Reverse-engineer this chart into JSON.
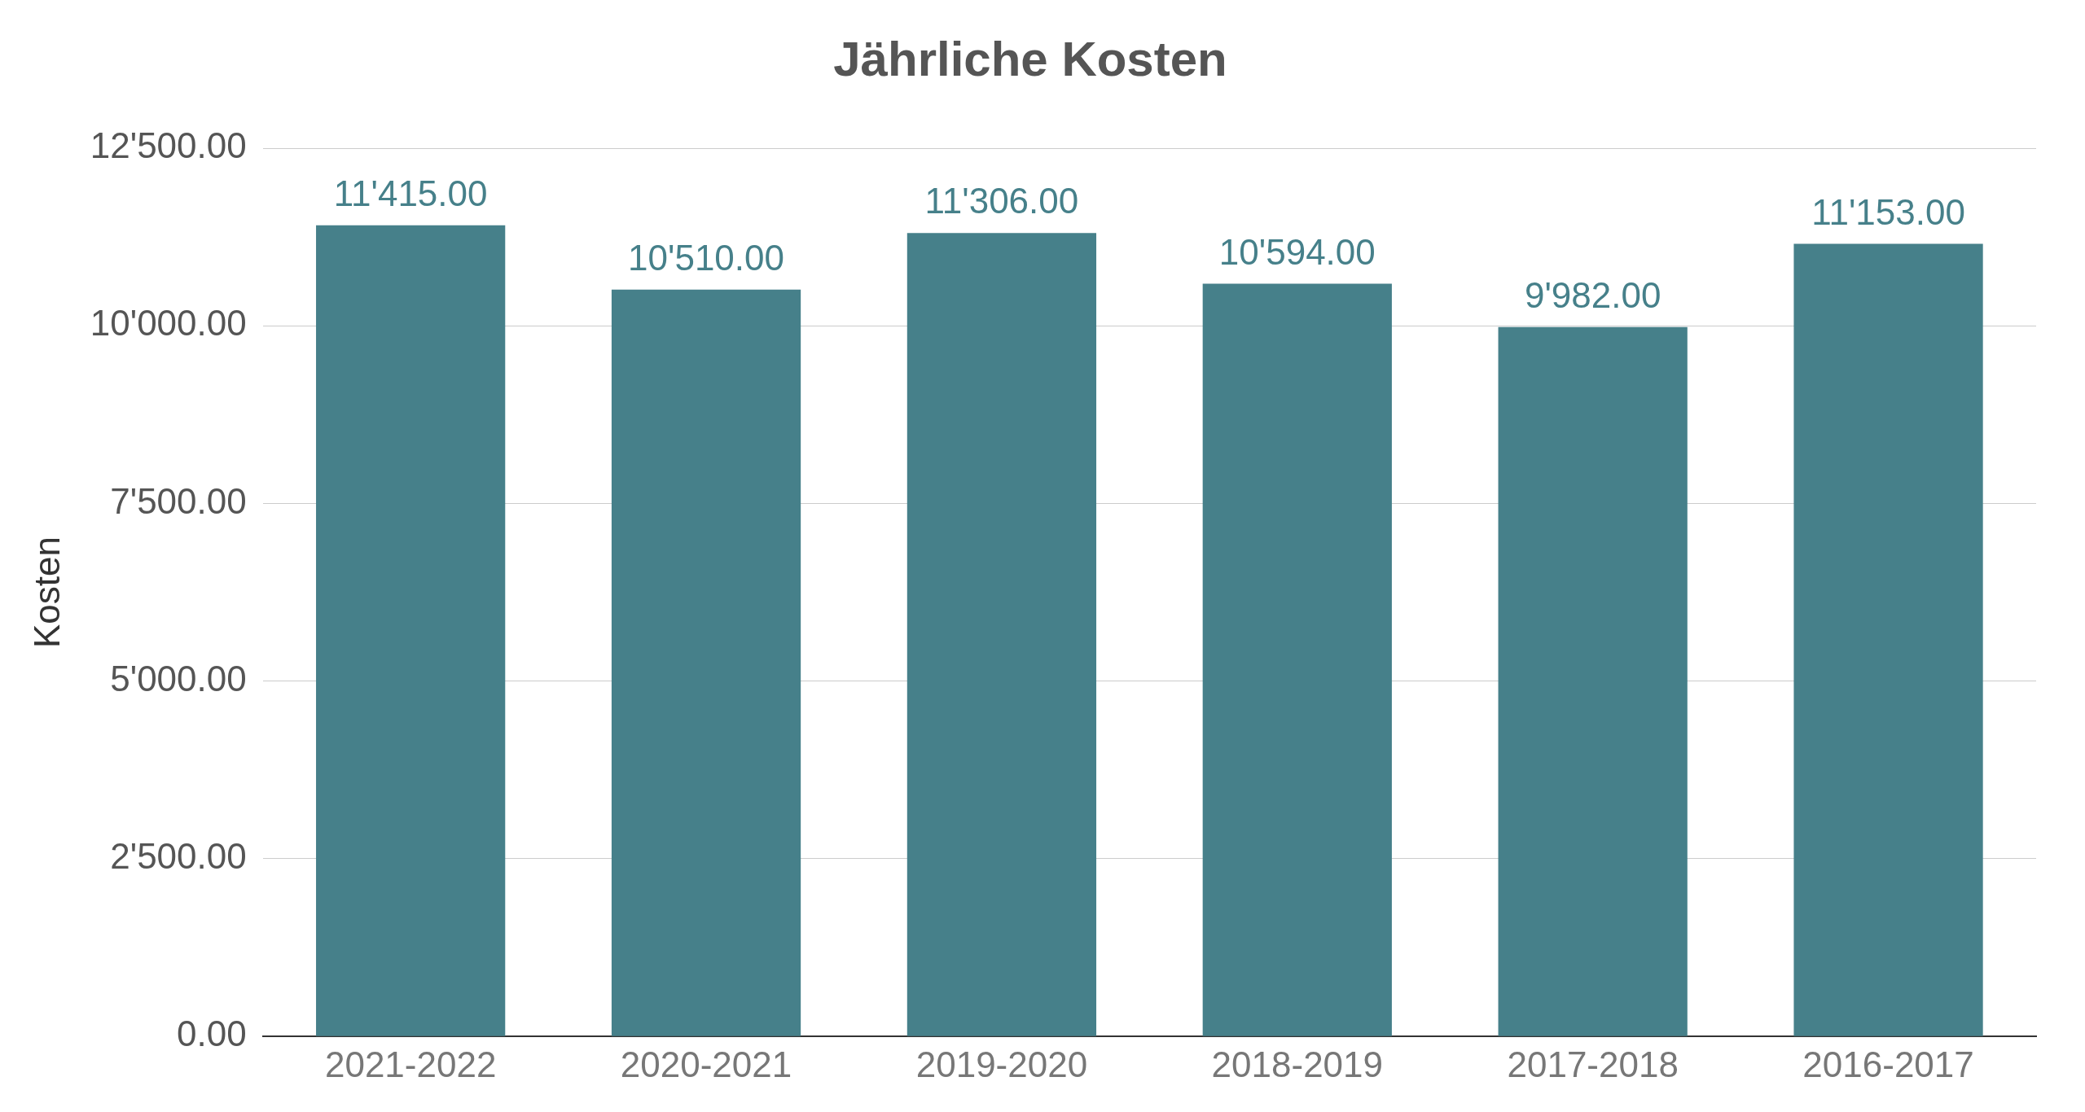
{
  "chart_data": {
    "type": "bar",
    "title": "Jährliche Kosten",
    "ylabel": "Kosten",
    "categories": [
      "2021-2022",
      "2020-2021",
      "2019-2020",
      "2018-2019",
      "2017-2018",
      "2016-2017"
    ],
    "values": [
      11415,
      10510,
      11306,
      10594,
      9982,
      11153
    ],
    "value_labels": [
      "11'415.00",
      "10'510.00",
      "11'306.00",
      "10'594.00",
      "9'982.00",
      "11'153.00"
    ],
    "color": "#46808a",
    "ylim": [
      0,
      12500
    ],
    "yticks": [
      {
        "value": 0,
        "label": "0.00"
      },
      {
        "value": 2500,
        "label": "2'500.00"
      },
      {
        "value": 5000,
        "label": "5'000.00"
      },
      {
        "value": 7500,
        "label": "7'500.00"
      },
      {
        "value": 10000,
        "label": "10'000.00"
      },
      {
        "value": 12500,
        "label": "12'500.00"
      }
    ],
    "grid": "y",
    "legend": false
  }
}
